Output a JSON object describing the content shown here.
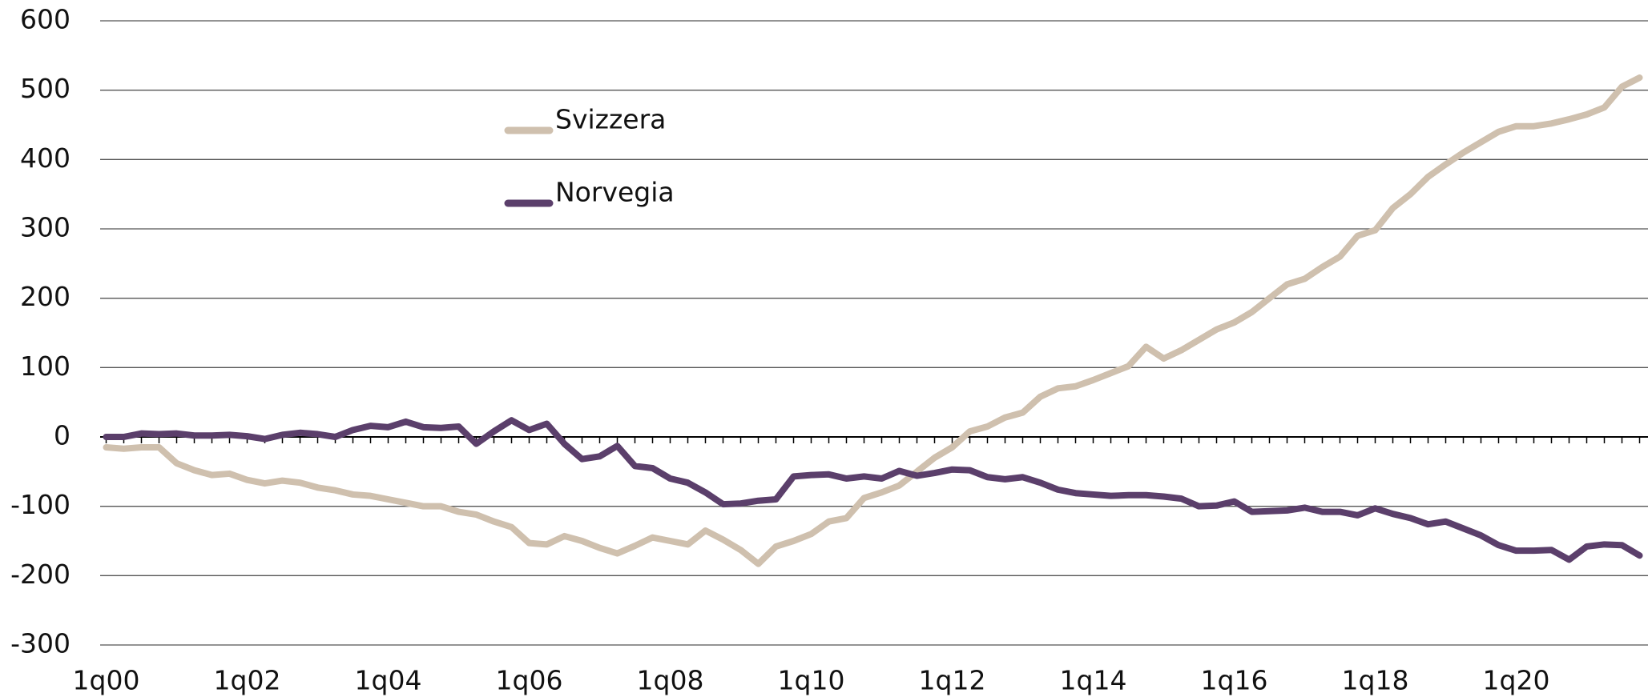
{
  "chart_data": {
    "type": "line",
    "categories": [
      "1q00",
      null,
      null,
      null,
      null,
      null,
      null,
      null,
      "1q02",
      null,
      null,
      null,
      null,
      null,
      null,
      null,
      "1q04",
      null,
      null,
      null,
      null,
      null,
      null,
      null,
      "1q06",
      null,
      null,
      null,
      null,
      null,
      null,
      null,
      "1q08",
      null,
      null,
      null,
      null,
      null,
      null,
      null,
      "1q10",
      null,
      null,
      null,
      null,
      null,
      null,
      null,
      "1q12",
      null,
      null,
      null,
      null,
      null,
      null,
      null,
      "1q14",
      null,
      null,
      null,
      null,
      null,
      null,
      null,
      "1q16",
      null,
      null,
      null,
      null,
      null,
      null,
      null,
      "1q18",
      null,
      null,
      null,
      null,
      null,
      null,
      null,
      "1q20",
      null,
      null,
      null,
      null,
      null,
      null,
      null
    ],
    "series": [
      {
        "name": "Svizzera",
        "color": "#cfc0ae",
        "values": [
          -15,
          -17,
          -15,
          -15,
          -38,
          -48,
          -55,
          -53,
          -62,
          -67,
          -63,
          -66,
          -73,
          -77,
          -83,
          -85,
          -90,
          -95,
          -100,
          -100,
          -108,
          -112,
          -122,
          -130,
          -153,
          -155,
          -143,
          -150,
          -160,
          -168,
          -157,
          -145,
          -150,
          -155,
          -135,
          -148,
          -163,
          -183,
          -158,
          -150,
          -140,
          -122,
          -117,
          -88,
          -80,
          -70,
          -50,
          -30,
          -15,
          8,
          15,
          28,
          35,
          58,
          70,
          73,
          82,
          92,
          102,
          130,
          113,
          125,
          140,
          155,
          165,
          180,
          200,
          220,
          228,
          245,
          260,
          290,
          298,
          330,
          350,
          375,
          393,
          410,
          425,
          440,
          448,
          448,
          452,
          458,
          465,
          475,
          505,
          518
        ]
      },
      {
        "name": "Norvegia",
        "color": "#5b3f6b",
        "values": [
          0,
          0,
          5,
          4,
          5,
          2,
          2,
          3,
          1,
          -3,
          3,
          6,
          4,
          0,
          10,
          16,
          14,
          22,
          14,
          13,
          15,
          -10,
          8,
          24,
          10,
          19,
          -10,
          -32,
          -28,
          -13,
          -42,
          -45,
          -60,
          -66,
          -80,
          -97,
          -96,
          -92,
          -90,
          -57,
          -55,
          -54,
          -60,
          -57,
          -60,
          -49,
          -56,
          -52,
          -47,
          -48,
          -58,
          -61,
          -58,
          -66,
          -76,
          -81,
          -83,
          -85,
          -84,
          -84,
          -86,
          -89,
          -100,
          -99,
          -93,
          -108,
          -107,
          -106,
          -102,
          -108,
          -108,
          -113,
          -103,
          -111,
          -117,
          -126,
          -122,
          -132,
          -142,
          -156,
          -164,
          -164,
          -163,
          -177,
          -158,
          -155,
          -156,
          -171
        ]
      }
    ],
    "ylim": [
      -300,
      600
    ],
    "yticks": [
      -300,
      -200,
      -100,
      0,
      100,
      200,
      300,
      400,
      500,
      600
    ],
    "grid": true
  }
}
